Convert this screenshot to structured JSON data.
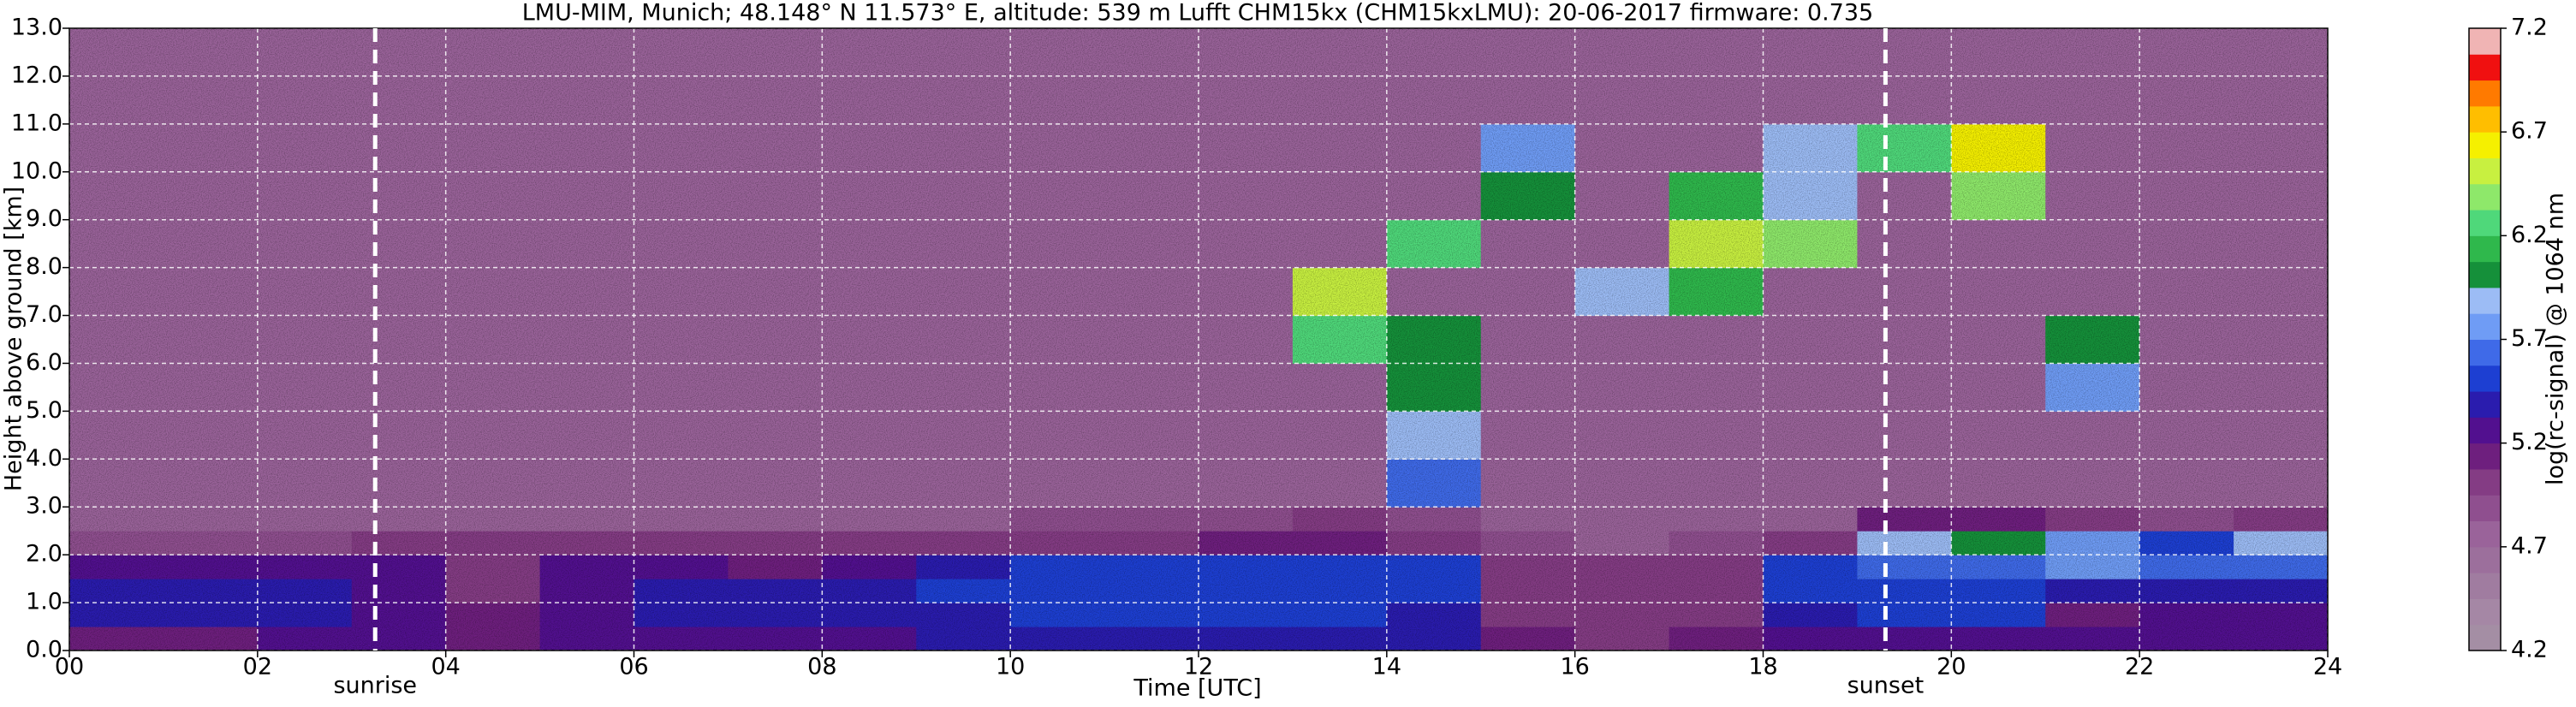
{
  "chart_data": {
    "type": "heatmap",
    "title": "LMU-MIM, Munich; 48.148° N 11.573° E, altitude: 539 m    Lufft CHM15kx (CHM15kxLMU): 20-06-2017    firmware: 0.735",
    "x_label": "Time [UTC]",
    "y_label": "Height above ground [km]",
    "colorbar_label": "log(rc-signal) @ 1064 nm",
    "xlim": [
      0,
      24
    ],
    "ylim": [
      0,
      13
    ],
    "xticks": [
      {
        "value": 0,
        "label": "00"
      },
      {
        "value": 2,
        "label": "02"
      },
      {
        "value": 4,
        "label": "04"
      },
      {
        "value": 6,
        "label": "06"
      },
      {
        "value": 8,
        "label": "08"
      },
      10,
      12,
      14,
      16,
      18,
      20,
      22,
      24
    ],
    "yticks": [
      {
        "value": 0,
        "label": "0.0"
      },
      {
        "value": 1,
        "label": "1.0"
      },
      {
        "value": 2,
        "label": "2.0"
      },
      {
        "value": 3,
        "label": "3.0"
      },
      {
        "value": 4,
        "label": "4.0"
      },
      {
        "value": 5,
        "label": "5.0"
      },
      {
        "value": 6,
        "label": "6.0"
      },
      {
        "value": 7,
        "label": "7.0"
      },
      {
        "value": 8,
        "label": "8.0"
      },
      {
        "value": 9,
        "label": "9.0"
      },
      {
        "value": 10,
        "label": "10.0"
      },
      {
        "value": 11,
        "label": "11.0"
      },
      {
        "value": 12,
        "label": "12.0"
      },
      {
        "value": 13,
        "label": "13.0"
      }
    ],
    "grid": true,
    "clim": [
      4.2,
      7.2
    ],
    "cticks": [
      4.2,
      4.7,
      5.2,
      5.7,
      6.2,
      6.7,
      7.2
    ],
    "colors": [
      "#a48ea4",
      "#a587a5",
      "#a07ca0",
      "#9c6f9c",
      "#9a639a",
      "#8f4f8f",
      "#843c84",
      "#6e1f7e",
      "#52108f",
      "#2a1cae",
      "#1d3fd2",
      "#3f6ae8",
      "#6f9cf5",
      "#9cbcf5",
      "#15903a",
      "#2fb84c",
      "#4fd87a",
      "#8ee86a",
      "#c8f040",
      "#f5f000",
      "#ffbe00",
      "#ff7a00",
      "#f01010",
      "#f0b4b4"
    ],
    "markers": [
      {
        "label": "sunrise",
        "x": 3.25
      },
      {
        "label": "sunset",
        "x": 19.3
      }
    ],
    "y_edges": [
      0,
      0.5,
      1,
      1.5,
      2,
      2.5,
      3,
      4,
      5,
      6,
      7,
      8,
      9,
      10,
      11,
      12,
      13
    ],
    "z": [
      [
        5.15,
        5.15,
        5.2,
        5.2,
        5.15,
        5.2,
        5.2,
        5.2,
        5.3,
        5.35,
        5.35,
        5.35,
        5.35,
        5.4,
        5.35,
        5.1,
        5.05,
        5.1,
        5.2,
        5.3,
        5.3,
        5.2,
        5.2,
        5.3
      ],
      [
        5.35,
        5.35,
        5.35,
        5.3,
        5.1,
        5.3,
        5.35,
        5.35,
        5.4,
        5.4,
        5.45,
        5.45,
        5.45,
        5.45,
        5.4,
        5.05,
        5.0,
        5.05,
        5.35,
        5.5,
        5.45,
        5.15,
        5.2,
        5.3
      ],
      [
        5.4,
        5.35,
        5.4,
        5.3,
        5.0,
        5.3,
        5.35,
        5.35,
        5.4,
        5.45,
        5.45,
        5.5,
        5.5,
        5.45,
        5.45,
        5.0,
        5.0,
        5.05,
        5.45,
        5.55,
        5.5,
        5.4,
        5.35,
        5.4
      ],
      [
        5.3,
        5.25,
        5.3,
        5.2,
        4.95,
        5.2,
        5.2,
        5.15,
        5.2,
        5.4,
        5.45,
        5.5,
        5.55,
        5.55,
        5.5,
        4.95,
        4.95,
        5.0,
        5.5,
        5.6,
        5.6,
        5.7,
        5.6,
        5.65
      ],
      [
        4.85,
        4.9,
        4.9,
        4.95,
        5.0,
        5.0,
        5.0,
        4.95,
        4.95,
        5.0,
        5.0,
        5.05,
        5.1,
        5.1,
        5.05,
        4.85,
        4.8,
        4.85,
        5.0,
        5.9,
        6.0,
        5.8,
        5.5,
        5.9
      ],
      [
        4.75,
        4.75,
        4.75,
        4.75,
        4.75,
        4.75,
        4.75,
        4.75,
        4.8,
        4.8,
        4.85,
        4.85,
        4.9,
        4.95,
        4.85,
        4.75,
        4.75,
        4.75,
        4.8,
        5.1,
        5.1,
        5.0,
        4.9,
        4.95
      ],
      [
        4.7,
        4.7,
        4.7,
        4.7,
        4.7,
        4.7,
        4.7,
        4.7,
        4.7,
        4.7,
        4.7,
        4.7,
        4.7,
        4.7,
        5.6,
        4.7,
        4.7,
        4.7,
        4.7,
        4.7,
        4.7,
        4.7,
        4.7,
        4.7
      ],
      [
        4.7,
        4.7,
        4.7,
        4.7,
        4.7,
        4.7,
        4.7,
        4.7,
        4.7,
        4.7,
        4.7,
        4.7,
        4.7,
        4.7,
        5.9,
        4.7,
        4.7,
        4.7,
        4.7,
        4.7,
        4.7,
        4.7,
        4.7,
        4.7
      ],
      [
        4.7,
        4.7,
        4.7,
        4.7,
        4.7,
        4.7,
        4.7,
        4.7,
        4.7,
        4.7,
        4.7,
        4.7,
        4.7,
        4.7,
        6.0,
        4.7,
        4.7,
        4.7,
        4.7,
        4.7,
        4.7,
        5.8,
        4.7,
        4.7
      ],
      [
        4.7,
        4.7,
        4.7,
        4.7,
        4.7,
        4.7,
        4.7,
        4.7,
        4.7,
        4.7,
        4.7,
        4.7,
        4.7,
        6.2,
        6.0,
        4.7,
        4.7,
        4.7,
        4.7,
        4.7,
        4.7,
        6.0,
        4.7,
        4.7
      ],
      [
        4.7,
        4.7,
        4.7,
        4.7,
        4.7,
        4.7,
        4.7,
        4.7,
        4.7,
        4.7,
        4.7,
        4.7,
        4.7,
        6.5,
        4.7,
        4.7,
        5.9,
        6.1,
        4.7,
        4.7,
        4.7,
        4.7,
        4.7,
        4.7
      ],
      [
        4.7,
        4.7,
        4.7,
        4.7,
        4.7,
        4.7,
        4.7,
        4.7,
        4.7,
        4.7,
        4.7,
        4.7,
        4.7,
        4.7,
        6.3,
        4.7,
        4.7,
        6.5,
        6.4,
        4.7,
        4.7,
        4.7,
        4.7,
        4.7
      ],
      [
        4.7,
        4.7,
        4.7,
        4.7,
        4.7,
        4.7,
        4.7,
        4.7,
        4.7,
        4.7,
        4.7,
        4.7,
        4.7,
        4.7,
        4.7,
        6.0,
        4.7,
        6.1,
        5.9,
        4.7,
        6.4,
        4.7,
        4.7,
        4.7
      ],
      [
        4.7,
        4.7,
        4.7,
        4.7,
        4.7,
        4.7,
        4.7,
        4.7,
        4.7,
        4.7,
        4.7,
        4.7,
        4.7,
        4.7,
        4.7,
        5.8,
        4.7,
        4.7,
        5.9,
        6.3,
        6.6,
        4.7,
        4.7,
        4.7
      ],
      [
        4.7,
        4.7,
        4.7,
        4.7,
        4.7,
        4.7,
        4.7,
        4.7,
        4.7,
        4.7,
        4.7,
        4.7,
        4.7,
        4.7,
        4.7,
        4.7,
        4.7,
        4.7,
        4.7,
        4.7,
        4.7,
        4.7,
        4.7,
        4.7
      ],
      [
        4.7,
        4.7,
        4.7,
        4.7,
        4.7,
        4.7,
        4.7,
        4.7,
        4.7,
        4.7,
        4.7,
        4.7,
        4.7,
        4.7,
        4.7,
        4.7,
        4.7,
        4.7,
        4.7,
        4.7,
        4.7,
        4.7,
        4.7,
        4.7
      ]
    ]
  }
}
